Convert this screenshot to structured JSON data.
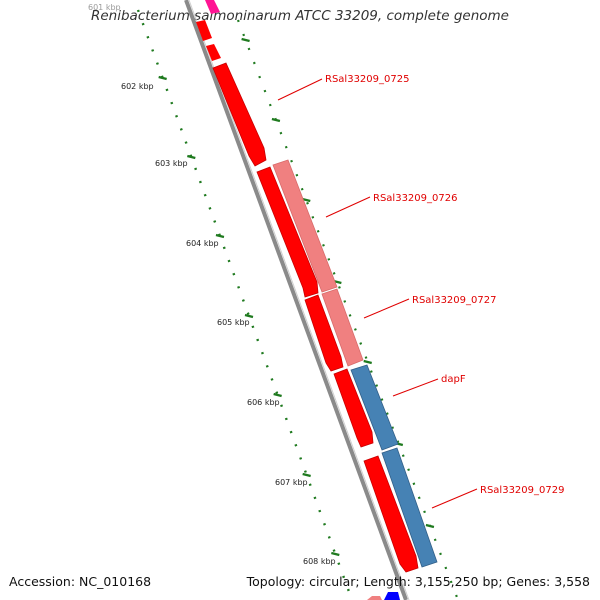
{
  "title": "Renibacterium salmoninarum ATCC 33209, complete genome",
  "footer": {
    "accession": "Accession: NC_010168",
    "summary": "Topology: circular; Length: 3,155,250 bp; Genes: 3,558"
  },
  "ruler": {
    "partial_label": "601 kbp",
    "labels": [
      "602 kbp",
      "603 kbp",
      "604 kbp",
      "605 kbp",
      "606 kbp",
      "607 kbp",
      "608 kbp"
    ]
  },
  "gene_labels": [
    "RSal33209_0725",
    "RSal33209_0726",
    "RSal33209_0727",
    "dapF",
    "RSal33209_0729"
  ],
  "colors": {
    "forward_cds": "#ff0000",
    "light_cds": "#f08080",
    "blue_cds": "#4682b4",
    "backbone": "#8a8a8a",
    "ruler": "#1f7a1f",
    "label": "#e00000",
    "magenta": "#ff1493"
  }
}
